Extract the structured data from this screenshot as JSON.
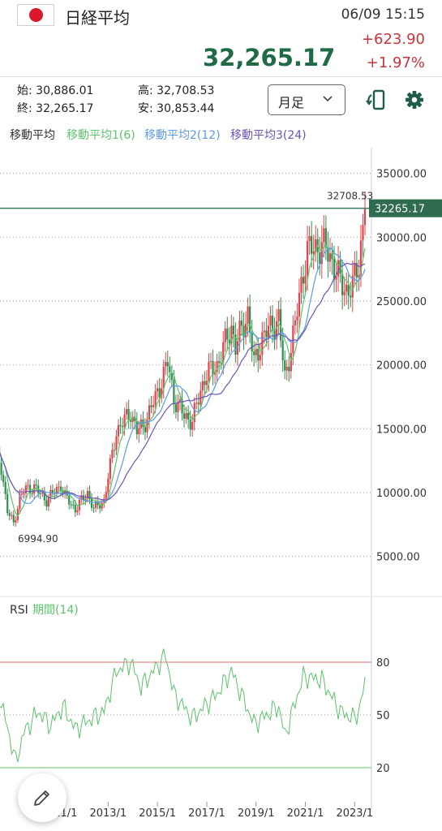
{
  "header": {
    "flag": "japan-flag",
    "title": "日経平均",
    "datetime": "06/09 15:15",
    "price": "32,265.17",
    "change": "+623.90",
    "change_pct": "+1.97%",
    "colors": {
      "price": "#1f6b45",
      "change": "#c8343b"
    }
  },
  "ohlc": {
    "open_label": "始:",
    "open": "30,886.01",
    "close_label": "終:",
    "close": "32,265.17",
    "high_label": "高:",
    "high": "32,708.53",
    "low_label": "安:",
    "low": "30,853.44"
  },
  "period_select": {
    "value": "月足",
    "icon": "chevron-down-icon"
  },
  "toolbar": {
    "rotate_icon": "rotate-screen-icon",
    "settings_icon": "gear-icon"
  },
  "fab": {
    "icon": "pencil-icon"
  },
  "chart_data": {
    "type": "candlestick",
    "title": "",
    "legend": {
      "label": "移動平均",
      "ma1": "移動平均1(6)",
      "ma2": "移動平均2(12)",
      "ma3": "移動平均3(24)",
      "colors": {
        "ma1": "#5cc46b",
        "ma2": "#5b9ae8",
        "ma3": "#6b55b8"
      }
    },
    "y_ticks": [
      "35000.00",
      "30000.00",
      "25000.00",
      "20000.00",
      "15000.00",
      "10000.00",
      "5000.00"
    ],
    "y_tick_values": [
      35000,
      30000,
      25000,
      20000,
      15000,
      10000,
      5000
    ],
    "ylim": [
      2500,
      36500
    ],
    "last_price_label": "32265.17",
    "last_price": 32265.17,
    "high_annotation": "32708.53",
    "low_annotation": "6994.90",
    "x_ticks": [
      "2011/1",
      "2013/1",
      "2015/1",
      "2017/1",
      "2019/1",
      "2021/1",
      "2023/1"
    ],
    "x_range": [
      "2008/6",
      "2023/6"
    ],
    "anchors": [
      [
        "2008/6",
        13500
      ],
      [
        "2008/9",
        12000
      ],
      [
        "2008/12",
        8500
      ],
      [
        "2009/3",
        7600
      ],
      [
        "2009/6",
        9600
      ],
      [
        "2009/9",
        10300
      ],
      [
        "2010/1",
        10400
      ],
      [
        "2010/7",
        9400
      ],
      [
        "2011/2",
        10600
      ],
      [
        "2011/4",
        9700
      ],
      [
        "2011/9",
        8700
      ],
      [
        "2012/3",
        10000
      ],
      [
        "2012/6",
        8700
      ],
      [
        "2012/11",
        9400
      ],
      [
        "2013/5",
        14800
      ],
      [
        "2013/12",
        16300
      ],
      [
        "2014/3",
        14800
      ],
      [
        "2014/6",
        15200
      ],
      [
        "2014/12",
        17400
      ],
      [
        "2015/6",
        20200
      ],
      [
        "2015/9",
        17400
      ],
      [
        "2016/2",
        16000
      ],
      [
        "2016/6",
        15600
      ],
      [
        "2016/12",
        19100
      ],
      [
        "2017/6",
        20000
      ],
      [
        "2018/1",
        23000
      ],
      [
        "2018/3",
        21400
      ],
      [
        "2018/9",
        24100
      ],
      [
        "2018/12",
        20000
      ],
      [
        "2019/4",
        22200
      ],
      [
        "2019/12",
        23600
      ],
      [
        "2020/3",
        18900
      ],
      [
        "2020/8",
        23100
      ],
      [
        "2020/12",
        27400
      ],
      [
        "2021/2",
        28900
      ],
      [
        "2021/9",
        29400
      ],
      [
        "2021/12",
        28800
      ],
      [
        "2022/3",
        27800
      ],
      [
        "2022/6",
        26400
      ],
      [
        "2022/9",
        25900
      ],
      [
        "2022/12",
        26100
      ],
      [
        "2023/3",
        28000
      ],
      [
        "2023/5",
        30900
      ],
      [
        "2023/6",
        32265
      ]
    ],
    "rsi": {
      "label": "RSI",
      "period_label": "期間(14)",
      "color": "#5cc46b",
      "levels": [
        80,
        50,
        20
      ],
      "level_labels": [
        "80",
        "50",
        "20"
      ],
      "ylim": [
        5,
        95
      ],
      "anchors": [
        [
          "2008/6",
          70
        ],
        [
          "2009/1",
          38
        ],
        [
          "2009/4",
          23
        ],
        [
          "2009/8",
          40
        ],
        [
          "2010/3",
          52
        ],
        [
          "2010/9",
          44
        ],
        [
          "2011/3",
          55
        ],
        [
          "2011/9",
          42
        ],
        [
          "2012/5",
          48
        ],
        [
          "2012/11",
          52
        ],
        [
          "2013/5",
          75
        ],
        [
          "2013/12",
          80
        ],
        [
          "2014/5",
          66
        ],
        [
          "2015/5",
          84
        ],
        [
          "2015/9",
          62
        ],
        [
          "2016/6",
          48
        ],
        [
          "2017/6",
          62
        ],
        [
          "2018/1",
          75
        ],
        [
          "2018/12",
          45
        ],
        [
          "2019/12",
          55
        ],
        [
          "2020/3",
          38
        ],
        [
          "2020/12",
          72
        ],
        [
          "2021/9",
          70
        ],
        [
          "2022/6",
          52
        ],
        [
          "2022/12",
          48
        ],
        [
          "2023/3",
          52
        ],
        [
          "2023/6",
          68
        ]
      ]
    }
  }
}
